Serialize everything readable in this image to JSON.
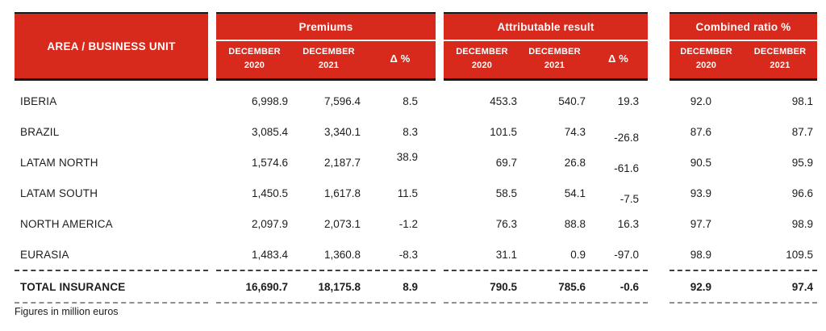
{
  "table": {
    "area_header": "AREA / BUSINESS UNIT",
    "groups": {
      "premiums": {
        "title": "Premiums",
        "cols": [
          "DECEMBER\n2020",
          "DECEMBER\n2021",
          "Δ %"
        ]
      },
      "attributable": {
        "title": "Attributable result",
        "cols": [
          "DECEMBER\n2020",
          "DECEMBER\n2021",
          "Δ %"
        ]
      },
      "combined": {
        "title": "Combined ratio %",
        "cols": [
          "DECEMBER\n2020",
          "DECEMBER\n2021"
        ]
      }
    },
    "rows": [
      {
        "area": "IBERIA",
        "premiums": [
          "6,998.9",
          "7,596.4",
          "8.5"
        ],
        "attributable": [
          "453.3",
          "540.7",
          "19.3"
        ],
        "combined": [
          "92.0",
          "98.1"
        ]
      },
      {
        "area": "BRAZIL",
        "premiums": [
          "3,085.4",
          "3,340.1",
          "8.3"
        ],
        "attributable": [
          "101.5",
          "74.3",
          "-26.8"
        ],
        "combined": [
          "87.6",
          "87.7"
        ]
      },
      {
        "area": "LATAM NORTH",
        "premiums": [
          "1,574.6",
          "2,187.7",
          "38.9"
        ],
        "attributable": [
          "69.7",
          "26.8",
          "-61.6"
        ],
        "combined": [
          "90.5",
          "95.9"
        ]
      },
      {
        "area": "LATAM SOUTH",
        "premiums": [
          "1,450.5",
          "1,617.8",
          "11.5"
        ],
        "attributable": [
          "58.5",
          "54.1",
          "-7.5"
        ],
        "combined": [
          "93.9",
          "96.6"
        ]
      },
      {
        "area": "NORTH AMERICA",
        "premiums": [
          "2,097.9",
          "2,073.1",
          "-1.2"
        ],
        "attributable": [
          "76.3",
          "88.8",
          "16.3"
        ],
        "combined": [
          "97.7",
          "98.9"
        ]
      },
      {
        "area": "EURASIA",
        "premiums": [
          "1,483.4",
          "1,360.8",
          "-8.3"
        ],
        "attributable": [
          "31.1",
          "0.9",
          "-97.0"
        ],
        "combined": [
          "98.9",
          "109.5"
        ]
      }
    ],
    "total": {
      "area": "TOTAL INSURANCE",
      "premiums": [
        "16,690.7",
        "18,175.8",
        "8.9"
      ],
      "attributable": [
        "790.5",
        "785.6",
        "-0.6"
      ],
      "combined": [
        "92.9",
        "97.4"
      ]
    },
    "footnote": "Figures in million euros"
  },
  "colors": {
    "header_red": "#D7291C",
    "border_black": "#161616",
    "text": "#1D1D1B",
    "dash_dark": "#3F3F3F",
    "dash_light": "#8F8F8F"
  },
  "chart_data": {
    "type": "table",
    "column_groups": [
      {
        "title": "AREA / BUSINESS UNIT",
        "columns": []
      },
      {
        "title": "Premiums",
        "columns": [
          "DECEMBER 2020",
          "DECEMBER 2021",
          "Δ %"
        ]
      },
      {
        "title": "Attributable result",
        "columns": [
          "DECEMBER 2020",
          "DECEMBER 2021",
          "Δ %"
        ]
      },
      {
        "title": "Combined ratio %",
        "columns": [
          "DECEMBER 2020",
          "DECEMBER 2021"
        ]
      }
    ],
    "rows": [
      [
        "IBERIA",
        6998.9,
        7596.4,
        8.5,
        453.3,
        540.7,
        19.3,
        92.0,
        98.1
      ],
      [
        "BRAZIL",
        3085.4,
        3340.1,
        8.3,
        101.5,
        74.3,
        -26.8,
        87.6,
        87.7
      ],
      [
        "LATAM NORTH",
        1574.6,
        2187.7,
        38.9,
        69.7,
        26.8,
        -61.6,
        90.5,
        95.9
      ],
      [
        "LATAM SOUTH",
        1450.5,
        1617.8,
        11.5,
        58.5,
        54.1,
        -7.5,
        93.9,
        96.6
      ],
      [
        "NORTH AMERICA",
        2097.9,
        2073.1,
        -1.2,
        76.3,
        88.8,
        16.3,
        97.7,
        98.9
      ],
      [
        "EURASIA",
        1483.4,
        1360.8,
        -8.3,
        31.1,
        0.9,
        -97.0,
        98.9,
        109.5
      ]
    ],
    "total_row": [
      "TOTAL INSURANCE",
      16690.7,
      18175.8,
      8.9,
      790.5,
      785.6,
      -0.6,
      92.9,
      97.4
    ],
    "footnote": "Figures in million euros",
    "units": "million euros"
  }
}
